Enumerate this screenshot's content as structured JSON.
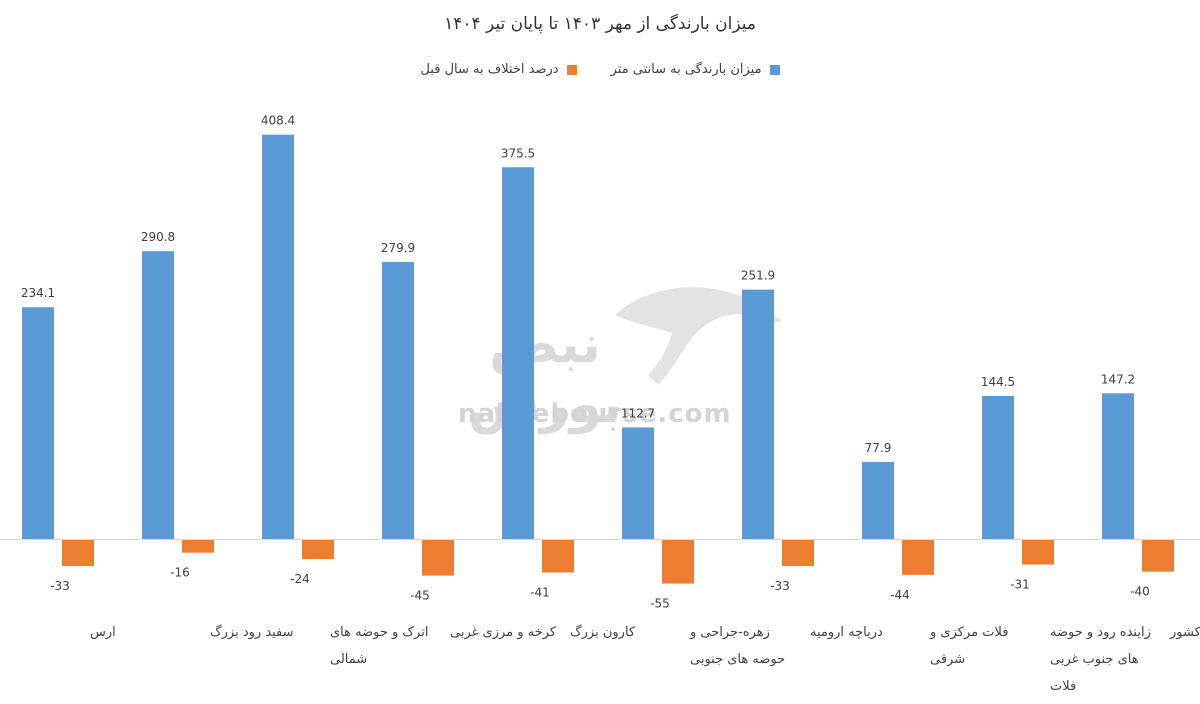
{
  "chart_data": {
    "type": "bar",
    "title": "میزان بارندگی از مهر ۱۴۰۳ تا پایان تیر ۱۴۰۴",
    "categories": [
      [
        "ارس"
      ],
      [
        "سفید رود بزرگ"
      ],
      [
        "اترک و حوضه های",
        "شمالی"
      ],
      [
        "کرخه و مرزی غربی"
      ],
      [
        "کارون بزرگ"
      ],
      [
        "زهره-جراحی و",
        "حوضه های جنوبی"
      ],
      [
        "دریاچه ارومیه"
      ],
      [
        "فلات مرکزی و",
        "شرقی"
      ],
      [
        "زاینده رود و حوضه",
        "های جنوب غربی",
        "فلات"
      ],
      [
        "کشور"
      ]
    ],
    "series": [
      {
        "name": "میزان بارندگی به سانتی متر",
        "color": "#5B9BD5",
        "values": [
          234.1,
          290.8,
          408.4,
          279.9,
          375.5,
          112.7,
          251.9,
          77.9,
          144.5,
          147.2
        ]
      },
      {
        "name": "درصد اختلاف به سال قبل",
        "color": "#ED7D31",
        "values": [
          -33,
          -16,
          -24,
          -45,
          -41,
          -55,
          -33,
          -44,
          -31,
          -40
        ]
      }
    ],
    "ylim": [
      -60,
      420
    ],
    "grid": false,
    "legend_position": "top"
  },
  "watermark": {
    "logo_text": "نبض بورس",
    "url": "nabzebourse.com"
  }
}
